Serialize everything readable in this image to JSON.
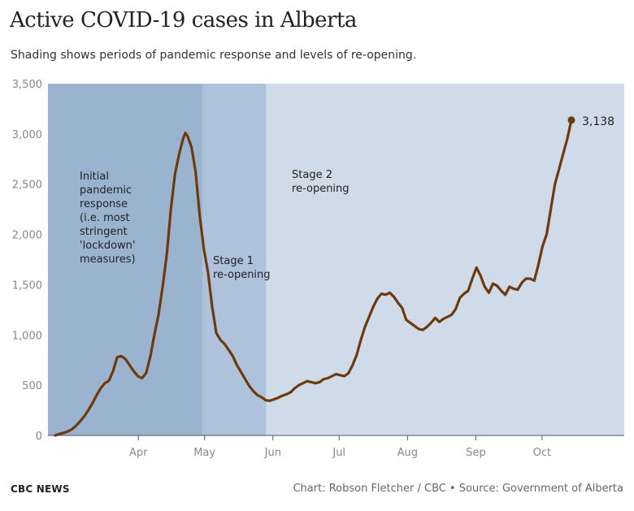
{
  "header": {
    "title": "Active COVID-19 cases in Alberta",
    "subtitle": "Shading shows periods of pandemic response and levels of re-opening."
  },
  "footer": {
    "brand": "CBC NEWS",
    "credit": "Chart: Robson Fletcher / CBC • Source: Government of Alberta"
  },
  "colors": {
    "line": "#6e3a0c",
    "band_initial": "#9ab4d0",
    "band_stage1": "#aec3db",
    "band_stage2": "#cfdbe8",
    "axis": "#555555"
  },
  "chart_data": {
    "type": "line",
    "title": "Active COVID-19 cases in Alberta",
    "ylim": [
      0,
      3500
    ],
    "yticks": [
      0,
      500,
      1000,
      1500,
      2000,
      2500,
      3000,
      3500
    ],
    "ytick_labels": [
      "0",
      "500",
      "1,000",
      "1,500",
      "2,000",
      "2,500",
      "3,000",
      "3,500"
    ],
    "x_range": [
      "2020-03-05",
      "2020-11-01"
    ],
    "xticks": [
      {
        "date": "2020-04-15",
        "label": "Apr"
      },
      {
        "date": "2020-05-15",
        "label": "May"
      },
      {
        "date": "2020-06-15",
        "label": "Jun"
      },
      {
        "date": "2020-07-15",
        "label": "Jul"
      },
      {
        "date": "2020-08-15",
        "label": "Aug"
      },
      {
        "date": "2020-09-15",
        "label": "Sep"
      },
      {
        "date": "2020-10-15",
        "label": "Oct"
      }
    ],
    "periods": [
      {
        "start": "2020-03-05",
        "end": "2020-05-14",
        "label": "Initial pandemic response (i.e. most stringent 'lockdown' measures)",
        "lines": [
          "Initial",
          "pandemic",
          "response",
          "(i.e. most",
          "stringent",
          "'lockdown'",
          "measures)"
        ]
      },
      {
        "start": "2020-05-14",
        "end": "2020-06-12",
        "label": "Stage 1 re-opening",
        "lines": [
          "Stage 1",
          "re-opening"
        ]
      },
      {
        "start": "2020-06-12",
        "end": "2020-11-01",
        "label": "Stage 2 re-opening",
        "lines": [
          "Stage 2",
          "re-opening"
        ]
      }
    ],
    "series": [
      {
        "values": [
          [
            "2020-03-08",
            0
          ],
          [
            "2020-03-10",
            15
          ],
          [
            "2020-03-12",
            25
          ],
          [
            "2020-03-14",
            40
          ],
          [
            "2020-03-16",
            60
          ],
          [
            "2020-03-18",
            95
          ],
          [
            "2020-03-20",
            140
          ],
          [
            "2020-03-22",
            190
          ],
          [
            "2020-03-24",
            250
          ],
          [
            "2020-03-26",
            320
          ],
          [
            "2020-03-28",
            400
          ],
          [
            "2020-03-30",
            470
          ],
          [
            "2020-04-01",
            520
          ],
          [
            "2020-04-03",
            545
          ],
          [
            "2020-04-05",
            640
          ],
          [
            "2020-04-07",
            780
          ],
          [
            "2020-04-09",
            790
          ],
          [
            "2020-04-11",
            760
          ],
          [
            "2020-04-13",
            700
          ],
          [
            "2020-04-15",
            640
          ],
          [
            "2020-04-17",
            590
          ],
          [
            "2020-04-19",
            570
          ],
          [
            "2020-04-21",
            620
          ],
          [
            "2020-04-23",
            780
          ],
          [
            "2020-04-25",
            1000
          ],
          [
            "2020-04-27",
            1200
          ],
          [
            "2020-04-29",
            1480
          ],
          [
            "2020-05-01",
            1800
          ],
          [
            "2020-05-03",
            2250
          ],
          [
            "2020-05-05",
            2600
          ],
          [
            "2020-05-07",
            2800
          ],
          [
            "2020-05-09",
            2960
          ],
          [
            "2020-05-10",
            3010
          ],
          [
            "2020-05-11",
            2980
          ],
          [
            "2020-05-13",
            2870
          ],
          [
            "2020-05-15",
            2620
          ],
          [
            "2020-05-17",
            2180
          ],
          [
            "2020-05-19",
            1850
          ],
          [
            "2020-05-21",
            1620
          ],
          [
            "2020-05-23",
            1280
          ],
          [
            "2020-05-25",
            1020
          ],
          [
            "2020-05-27",
            950
          ],
          [
            "2020-05-29",
            910
          ],
          [
            "2020-05-31",
            850
          ],
          [
            "2020-06-02",
            790
          ],
          [
            "2020-06-04",
            700
          ],
          [
            "2020-06-06",
            630
          ],
          [
            "2020-06-08",
            560
          ],
          [
            "2020-06-10",
            490
          ],
          [
            "2020-06-12",
            440
          ],
          [
            "2020-06-14",
            400
          ],
          [
            "2020-06-16",
            380
          ],
          [
            "2020-06-18",
            350
          ],
          [
            "2020-06-20",
            345
          ],
          [
            "2020-06-22",
            360
          ],
          [
            "2020-06-24",
            375
          ],
          [
            "2020-06-26",
            395
          ],
          [
            "2020-06-28",
            410
          ],
          [
            "2020-06-30",
            430
          ],
          [
            "2020-07-02",
            470
          ],
          [
            "2020-07-04",
            500
          ],
          [
            "2020-07-06",
            520
          ],
          [
            "2020-07-08",
            540
          ],
          [
            "2020-07-10",
            530
          ],
          [
            "2020-07-12",
            520
          ],
          [
            "2020-07-14",
            530
          ],
          [
            "2020-07-16",
            560
          ],
          [
            "2020-07-18",
            570
          ],
          [
            "2020-07-20",
            590
          ],
          [
            "2020-07-22",
            610
          ],
          [
            "2020-07-24",
            600
          ],
          [
            "2020-07-26",
            590
          ],
          [
            "2020-07-28",
            620
          ],
          [
            "2020-07-30",
            700
          ],
          [
            "2020-08-01",
            800
          ],
          [
            "2020-08-03",
            950
          ],
          [
            "2020-08-05",
            1080
          ],
          [
            "2020-08-07",
            1180
          ],
          [
            "2020-08-09",
            1280
          ],
          [
            "2020-08-11",
            1360
          ],
          [
            "2020-08-13",
            1410
          ],
          [
            "2020-08-15",
            1400
          ],
          [
            "2020-08-17",
            1420
          ],
          [
            "2020-08-19",
            1380
          ],
          [
            "2020-08-21",
            1320
          ],
          [
            "2020-08-23",
            1270
          ],
          [
            "2020-08-25",
            1150
          ],
          [
            "2020-08-27",
            1120
          ],
          [
            "2020-08-29",
            1090
          ],
          [
            "2020-08-31",
            1060
          ],
          [
            "2020-09-02",
            1050
          ],
          [
            "2020-09-04",
            1080
          ],
          [
            "2020-09-06",
            1120
          ],
          [
            "2020-09-08",
            1170
          ],
          [
            "2020-09-10",
            1130
          ],
          [
            "2020-09-12",
            1160
          ],
          [
            "2020-09-14",
            1180
          ],
          [
            "2020-09-16",
            1200
          ],
          [
            "2020-09-18",
            1260
          ],
          [
            "2020-09-20",
            1370
          ],
          [
            "2020-09-22",
            1410
          ],
          [
            "2020-09-24",
            1440
          ],
          [
            "2020-09-26",
            1560
          ],
          [
            "2020-09-28",
            1670
          ],
          [
            "2020-09-30",
            1590
          ],
          [
            "2020-10-02",
            1480
          ],
          [
            "2020-10-04",
            1420
          ],
          [
            "2020-10-06",
            1510
          ],
          [
            "2020-10-08",
            1490
          ],
          [
            "2020-10-10",
            1440
          ],
          [
            "2020-10-12",
            1400
          ],
          [
            "2020-10-14",
            1480
          ],
          [
            "2020-10-16",
            1460
          ],
          [
            "2020-10-18",
            1450
          ],
          [
            "2020-10-20",
            1520
          ],
          [
            "2020-10-22",
            1560
          ],
          [
            "2020-10-24",
            1560
          ],
          [
            "2020-10-26",
            1540
          ],
          [
            "2020-10-28",
            1700
          ],
          [
            "2020-10-30",
            1880
          ],
          [
            "2020-11-01",
            2000
          ],
          [
            "2020-11-03",
            2250
          ],
          [
            "2020-11-05",
            2500
          ],
          [
            "2020-11-07",
            2650
          ],
          [
            "2020-11-09",
            2800
          ],
          [
            "2020-11-11",
            2950
          ],
          [
            "2020-11-13",
            3138
          ]
        ]
      }
    ],
    "end_label": "3,138"
  }
}
